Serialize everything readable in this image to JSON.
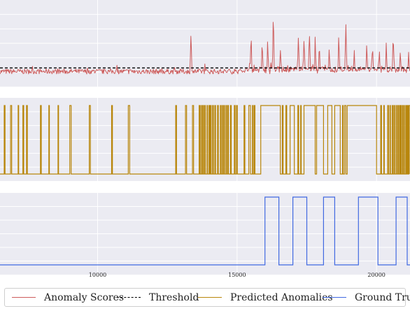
{
  "chart_data": [
    {
      "type": "line",
      "series": [
        {
          "name": "Anomaly Scores",
          "color": "#cd5c5c",
          "bursts": [
            {
              "x": 13350,
              "y": 1.0
            },
            {
              "x": 15500,
              "y": 0.75
            },
            {
              "x": 15900,
              "y": 0.72
            },
            {
              "x": 16100,
              "y": 0.63
            },
            {
              "x": 16300,
              "y": 1.0
            },
            {
              "x": 16550,
              "y": 0.58
            },
            {
              "x": 17200,
              "y": 0.74
            },
            {
              "x": 17400,
              "y": 0.74
            },
            {
              "x": 17600,
              "y": 1.0
            },
            {
              "x": 17800,
              "y": 0.62
            },
            {
              "x": 17950,
              "y": 0.72
            },
            {
              "x": 18300,
              "y": 0.55
            },
            {
              "x": 18650,
              "y": 0.84
            },
            {
              "x": 18900,
              "y": 1.0
            },
            {
              "x": 19200,
              "y": 0.48
            },
            {
              "x": 19650,
              "y": 0.56
            },
            {
              "x": 19850,
              "y": 0.62
            },
            {
              "x": 20100,
              "y": 0.44
            },
            {
              "x": 20350,
              "y": 0.62
            },
            {
              "x": 20600,
              "y": 0.98
            },
            {
              "x": 20850,
              "y": 0.48
            },
            {
              "x": 21150,
              "y": 0.38
            }
          ]
        },
        {
          "name": "Threshold",
          "color": "#000000",
          "y": 0.145
        }
      ]
    },
    {
      "type": "line",
      "series": [
        {
          "name": "Predicted Anomalies",
          "color": "#b8860b",
          "intervals": [
            [
              5820,
              5860
            ],
            [
              5900,
              5950
            ],
            [
              6000,
              6040
            ],
            [
              6080,
              6140
            ],
            [
              6180,
              6210
            ],
            [
              6330,
              6360
            ],
            [
              6450,
              6470
            ],
            [
              6650,
              6680
            ],
            [
              6880,
              6920
            ],
            [
              7150,
              7170
            ],
            [
              7320,
              7350
            ],
            [
              7450,
              7480
            ],
            [
              7950,
              7980
            ],
            [
              8250,
              8270
            ],
            [
              8580,
              8600
            ],
            [
              9000,
              9050
            ],
            [
              9700,
              9740
            ],
            [
              10500,
              10530
            ],
            [
              11100,
              11150
            ],
            [
              12800,
              12830
            ],
            [
              13150,
              13190
            ],
            [
              13400,
              13440
            ],
            [
              13640,
              13660
            ],
            [
              13700,
              13720
            ],
            [
              13760,
              13790
            ],
            [
              13830,
              13860
            ],
            [
              13920,
              13940
            ],
            [
              13990,
              14010
            ],
            [
              14040,
              14070
            ],
            [
              14120,
              14150
            ],
            [
              14200,
              14230
            ],
            [
              14300,
              14330
            ],
            [
              14400,
              14420
            ],
            [
              14460,
              14480
            ],
            [
              14520,
              14550
            ],
            [
              14600,
              14620
            ],
            [
              14660,
              14690
            ],
            [
              14760,
              14790
            ],
            [
              14900,
              14930
            ],
            [
              14980,
              15010
            ],
            [
              15250,
              15280
            ],
            [
              15420,
              15480
            ],
            [
              15550,
              15580
            ],
            [
              15620,
              15640
            ],
            [
              15850,
              16550
            ],
            [
              16620,
              16650
            ],
            [
              16750,
              16780
            ],
            [
              16900,
              17050
            ],
            [
              17180,
              17210
            ],
            [
              17280,
              17300
            ],
            [
              17400,
              17800
            ],
            [
              17850,
              18100
            ],
            [
              18250,
              18400
            ],
            [
              18500,
              18700
            ],
            [
              18780,
              18800
            ],
            [
              18850,
              18900
            ],
            [
              18950,
              20000
            ],
            [
              20150,
              20180
            ],
            [
              20260,
              20280
            ],
            [
              20400,
              20430
            ],
            [
              20480,
              20500
            ],
            [
              20560,
              20580
            ],
            [
              20620,
              20650
            ],
            [
              20700,
              20720
            ],
            [
              20760,
              20780
            ],
            [
              20820,
              20850
            ],
            [
              20880,
              20900
            ],
            [
              20940,
              20960
            ],
            [
              21000,
              21020
            ],
            [
              21060,
              21080
            ],
            [
              21100,
              21130
            ],
            [
              21160,
              21200
            ]
          ]
        }
      ]
    },
    {
      "type": "line",
      "series": [
        {
          "name": "Ground Truth",
          "color": "#4169e1",
          "intervals": [
            [
              16000,
              16500
            ],
            [
              17000,
              17500
            ],
            [
              18100,
              18500
            ],
            [
              19350,
              20050
            ],
            [
              20700,
              21100
            ]
          ]
        }
      ],
      "xticks": [
        "10000",
        "15000",
        "20000"
      ],
      "xtick_values": [
        10000,
        15000,
        20000
      ]
    }
  ],
  "legend": {
    "items": [
      {
        "label": "Anomaly Scores",
        "color": "#cd5c5c",
        "style": "solid"
      },
      {
        "label": "Threshold",
        "color": "#000000",
        "style": "dashed"
      },
      {
        "label": "Predicted Anomalies",
        "color": "#b8860b",
        "style": "solid"
      },
      {
        "label": "Ground Truth",
        "color": "#4169e1",
        "style": "solid"
      }
    ]
  }
}
